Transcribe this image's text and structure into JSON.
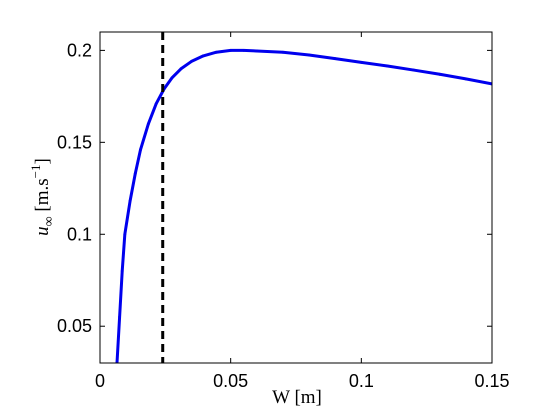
{
  "chart_data": {
    "type": "line",
    "xlabel": "W   [m]",
    "ylabel": {
      "var": "u",
      "sub": "∞",
      "unit_open": "[m.s",
      "unit_sup": "−1",
      "unit_close": "]"
    },
    "xlim": [
      0,
      0.15
    ],
    "ylim": [
      0.03,
      0.21
    ],
    "xticks": [
      0,
      0.05,
      0.1,
      0.15
    ],
    "xtick_labels": [
      "0",
      "0.05",
      "0.1",
      "0.15"
    ],
    "yticks": [
      0.05,
      0.1,
      0.15,
      0.2
    ],
    "ytick_labels": [
      "0.05",
      "0.1",
      "0.15",
      "0.2"
    ],
    "grid": false,
    "series": [
      {
        "line_style": "solid",
        "color": "#0000ee",
        "x": [
          0.0065,
          0.0075,
          0.0085,
          0.0095,
          0.0115,
          0.0135,
          0.0155,
          0.0185,
          0.0215,
          0.0245,
          0.0275,
          0.031,
          0.035,
          0.0395,
          0.0445,
          0.05,
          0.055,
          0.06,
          0.07,
          0.08,
          0.09,
          0.1,
          0.11,
          0.12,
          0.13,
          0.14,
          0.15
        ],
        "y": [
          0.03,
          0.055,
          0.08,
          0.1,
          0.118,
          0.133,
          0.146,
          0.16,
          0.171,
          0.179,
          0.185,
          0.19,
          0.194,
          0.197,
          0.199,
          0.2,
          0.2,
          0.1997,
          0.199,
          0.1975,
          0.1955,
          0.1935,
          0.1915,
          0.1893,
          0.187,
          0.1845,
          0.1818
        ]
      }
    ],
    "vlines": [
      {
        "x": 0.024,
        "line_style": "dashed",
        "color": "#000000"
      }
    ]
  }
}
